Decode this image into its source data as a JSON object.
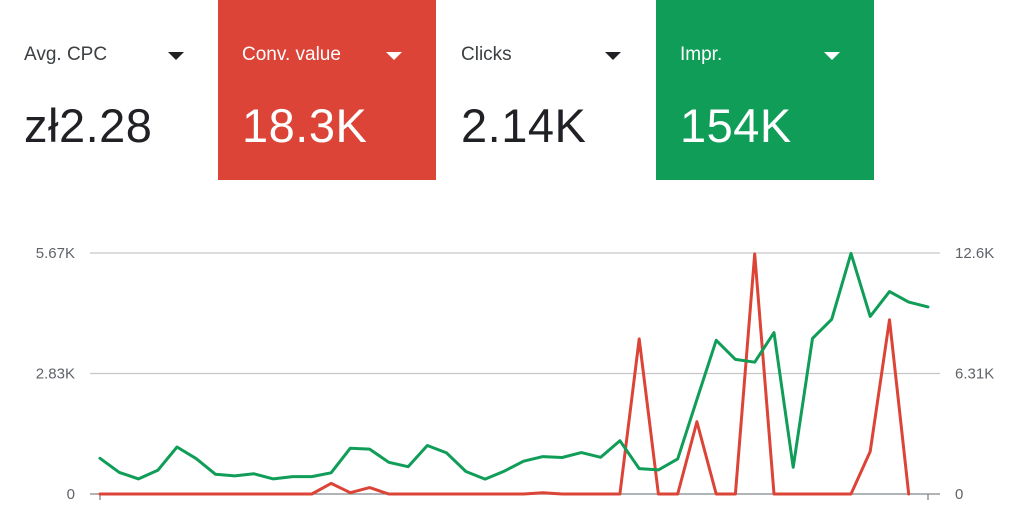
{
  "metrics": [
    {
      "label": "Avg. CPC",
      "value": "zł2.28",
      "active": false,
      "color": ""
    },
    {
      "label": "Conv. value",
      "value": "18.3K",
      "active": true,
      "color": "#db4437"
    },
    {
      "label": "Clicks",
      "value": "2.14K",
      "active": false,
      "color": ""
    },
    {
      "label": "Impr.",
      "value": "154K",
      "active": true,
      "color": "#0f9d58"
    }
  ],
  "chart_data": {
    "type": "line",
    "x": [
      1,
      2,
      3,
      4,
      5,
      6,
      7,
      8,
      9,
      10,
      11,
      12,
      13,
      14,
      15,
      16,
      17,
      18,
      19,
      20,
      21,
      22,
      23,
      24,
      25,
      26,
      27,
      28,
      29,
      30,
      31,
      32,
      33,
      34,
      35,
      36,
      37,
      38,
      39,
      40,
      41,
      42,
      43,
      44
    ],
    "left_axis": {
      "ticks": [
        "0",
        "2.83K",
        "5.67K"
      ],
      "range": [
        0,
        5670
      ]
    },
    "right_axis": {
      "ticks": [
        "0",
        "6.31K",
        "12.6K"
      ],
      "range": [
        0,
        12620
      ]
    },
    "grid": true,
    "series": [
      {
        "axis": "left",
        "color": "#db4437",
        "values": [
          0,
          0,
          0,
          0,
          0,
          0,
          0,
          0,
          0,
          0,
          0,
          0,
          250,
          30,
          150,
          0,
          0,
          0,
          0,
          0,
          0,
          0,
          0,
          30,
          0,
          0,
          0,
          0,
          3650,
          0,
          0,
          1700,
          0,
          0,
          5650,
          0,
          0,
          0,
          0,
          0,
          1000,
          4100,
          0,
          null
        ]
      },
      {
        "axis": "right",
        "color": "#0f9d58",
        "values": [
          1870,
          1130,
          790,
          1240,
          2460,
          1850,
          1030,
          950,
          1060,
          790,
          910,
          910,
          1110,
          2400,
          2350,
          1660,
          1430,
          2540,
          2150,
          1180,
          780,
          1200,
          1720,
          1960,
          1910,
          2170,
          1920,
          2790,
          1330,
          1260,
          1840,
          4950,
          8050,
          7050,
          6900,
          8450,
          1400,
          8150,
          9150,
          12600,
          9300,
          10600,
          10050,
          9800
        ]
      }
    ]
  }
}
